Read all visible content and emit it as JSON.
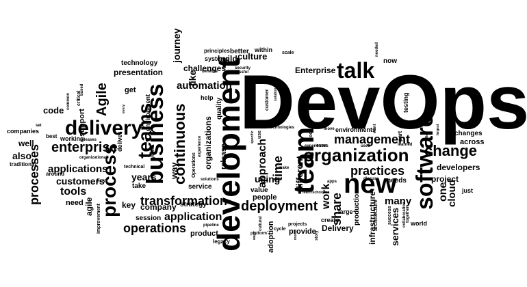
{
  "cloud": {
    "background": "#ffffff",
    "ink": "#000000",
    "words": [
      {
        "t": "DevOps"
      },
      {
        "t": "development"
      },
      {
        "t": "business"
      },
      {
        "t": "delivery"
      },
      {
        "t": "team"
      },
      {
        "t": "talk"
      },
      {
        "t": "new"
      },
      {
        "t": "software"
      },
      {
        "t": "organization"
      },
      {
        "t": "process"
      },
      {
        "t": "teams"
      },
      {
        "t": "continuous"
      },
      {
        "t": "change"
      },
      {
        "t": "deployment"
      },
      {
        "t": "enterprise"
      },
      {
        "t": "management"
      },
      {
        "t": "practices"
      },
      {
        "t": "transformation"
      },
      {
        "t": "operations"
      },
      {
        "t": "application"
      },
      {
        "t": "tools"
      },
      {
        "t": "applications"
      },
      {
        "t": "customers"
      },
      {
        "t": "automation"
      },
      {
        "t": "culture"
      },
      {
        "t": "build"
      },
      {
        "t": "Enterprise"
      },
      {
        "t": "Agile"
      },
      {
        "t": "time"
      },
      {
        "t": "approach"
      },
      {
        "t": "share"
      },
      {
        "t": "work"
      },
      {
        "t": "using"
      },
      {
        "t": "years"
      },
      {
        "t": "processes"
      },
      {
        "t": "code"
      },
      {
        "t": "also"
      },
      {
        "t": "well"
      },
      {
        "t": "need"
      },
      {
        "t": "agile"
      },
      {
        "t": "key"
      },
      {
        "t": "company"
      },
      {
        "t": "developers"
      },
      {
        "t": "project"
      },
      {
        "t": "one"
      },
      {
        "t": "cloud"
      },
      {
        "t": "many"
      },
      {
        "t": "services"
      },
      {
        "t": "across"
      },
      {
        "t": "people"
      },
      {
        "t": "Delivery"
      },
      {
        "t": "provide"
      },
      {
        "t": "product"
      },
      {
        "t": "journey"
      },
      {
        "t": "like"
      },
      {
        "t": "way"
      },
      {
        "t": "challenges"
      },
      {
        "t": "presentation"
      },
      {
        "t": "technology"
      },
      {
        "t": "systems"
      },
      {
        "t": "release"
      },
      {
        "t": "organizations"
      },
      {
        "t": "different"
      },
      {
        "t": "value"
      },
      {
        "t": "strategy"
      },
      {
        "t": "service"
      },
      {
        "t": "session"
      },
      {
        "t": "companies"
      },
      {
        "t": "take"
      },
      {
        "t": "get"
      },
      {
        "t": "support"
      },
      {
        "t": "testing"
      },
      {
        "t": "now"
      },
      {
        "t": "within"
      },
      {
        "t": "better"
      },
      {
        "t": "principles"
      },
      {
        "t": "production"
      },
      {
        "t": "infrastructure"
      },
      {
        "t": "help"
      },
      {
        "t": "quality"
      },
      {
        "t": "environments"
      },
      {
        "t": "changes"
      },
      {
        "t": "adoption"
      },
      {
        "t": "large"
      },
      {
        "t": "just"
      },
      {
        "t": "needs"
      },
      {
        "t": "create"
      },
      {
        "t": "projects"
      },
      {
        "t": "world"
      },
      {
        "t": "cycle"
      },
      {
        "t": "environment"
      },
      {
        "t": "deliver"
      },
      {
        "t": "working"
      },
      {
        "t": "releases"
      },
      {
        "t": "around"
      },
      {
        "t": "best"
      },
      {
        "t": "traditional"
      },
      {
        "t": "improvement"
      },
      {
        "t": "first"
      },
      {
        "t": "based"
      },
      {
        "t": "critical"
      },
      {
        "t": "common"
      },
      {
        "t": "set"
      },
      {
        "t": "every"
      },
      {
        "t": "system"
      },
      {
        "t": "technical"
      },
      {
        "t": "organizational"
      },
      {
        "t": "solutions"
      },
      {
        "t": "security"
      },
      {
        "t": "benefits"
      },
      {
        "t": "successful"
      },
      {
        "t": "scale"
      },
      {
        "t": "customer"
      },
      {
        "t": "solution"
      },
      {
        "t": "needed"
      },
      {
        "t": "focus"
      },
      {
        "t": "year"
      },
      {
        "t": "technologies"
      },
      {
        "t": "move"
      },
      {
        "t": "want"
      },
      {
        "t": "part"
      },
      {
        "t": "often"
      },
      {
        "t": "largest"
      },
      {
        "t": "experiences"
      },
      {
        "t": "even"
      },
      {
        "t": "learned"
      },
      {
        "t": "used"
      },
      {
        "t": "look"
      },
      {
        "t": "make"
      },
      {
        "t": "discuss"
      },
      {
        "t": "specific"
      },
      {
        "t": "use"
      },
      {
        "t": "apps"
      },
      {
        "t": "team-techniques"
      },
      {
        "t": "together"
      },
      {
        "t": "collaboration"
      },
      {
        "t": "success"
      },
      {
        "t": "architecture"
      },
      {
        "t": "story"
      },
      {
        "t": "model"
      },
      {
        "t": "ways"
      },
      {
        "t": "platform"
      },
      {
        "t": "legacy"
      },
      {
        "t": "pipeline"
      },
      {
        "t": "cultural"
      },
      {
        "t": "Operations"
      },
      {
        "t": "experience"
      }
    ]
  }
}
